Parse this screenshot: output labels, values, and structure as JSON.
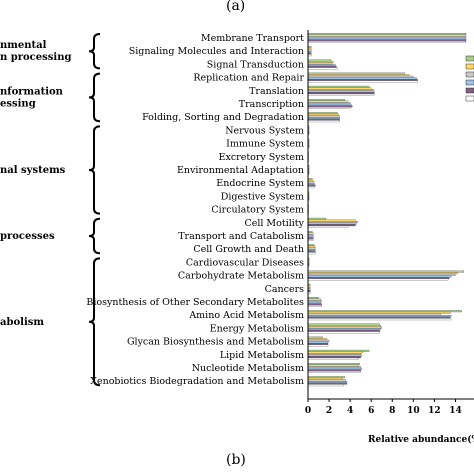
{
  "panel_top_label": "(a)",
  "panel_bottom_label": "(b)",
  "colors": {
    "series": [
      "#a8d08d",
      "#ffd966",
      "#c9c9c9",
      "#9dc3e6",
      "#7f6084",
      "#ffffff"
    ],
    "stroke": "#333333",
    "axis": "#000000"
  },
  "chart_data": {
    "type": "bar",
    "orientation": "horizontal",
    "xlabel": "Relative abundance(%)",
    "ylabel": "",
    "xlim": [
      0,
      15
    ],
    "xticks": [
      0,
      2,
      4,
      6,
      8,
      10,
      12,
      14
    ],
    "grid": false,
    "groups": [
      {
        "label": "nmental\nn processing",
        "categories": [
          "Membrane Transport",
          "Signaling Molecules and Interaction",
          "Signal Transduction"
        ]
      },
      {
        "label": "nformation\nessing",
        "categories": [
          "Replication and Repair",
          "Translation",
          "Transcription",
          "Folding, Sorting and Degradation"
        ]
      },
      {
        "label": "nal systems",
        "categories": [
          "Nervous System",
          "Immune System",
          "Excretory System",
          "Environmental Adaptation",
          "Endocrine System",
          "Digestive System",
          "Circulatory System"
        ]
      },
      {
        "label": "processes",
        "categories": [
          "Cell Motility",
          "Transport and Catabolism",
          "Cell Growth and Death"
        ]
      },
      {
        "label": "abolism",
        "categories": [
          "Cardiovascular Diseases",
          "Carbohydrate Metabolism",
          "Cancers",
          "Biosynthesis of Other Secondary Metabolites",
          "Amino Acid Metabolism",
          "Energy Metabolism",
          "Glycan Biosynthesis and Metabolism",
          "Lipid Metabolism",
          "Nucleotide Metabolism",
          "Xenobiotics Biodegradation and Metabolism"
        ]
      }
    ],
    "categories": [
      "Membrane Transport",
      "Signaling Molecules and Interaction",
      "Signal Transduction",
      "Replication and Repair",
      "Translation",
      "Transcription",
      "Folding, Sorting and Degradation",
      "Nervous System",
      "Immune System",
      "Excretory System",
      "Environmental Adaptation",
      "Endocrine System",
      "Digestive System",
      "Circulatory System",
      "Cell Motility",
      "Transport and Catabolism",
      "Cell Growth and Death",
      "Cardiovascular Diseases",
      "Carbohydrate Metabolism",
      "Cancers",
      "Biosynthesis of Other Secondary Metabolites",
      "Amino Acid Metabolism",
      "Energy Metabolism",
      "Glycan Biosynthesis and Metabolism",
      "Lipid Metabolism",
      "Nucleotide Metabolism",
      "Xenobiotics Biodegradation and Metabolism"
    ],
    "series": [
      {
        "values": [
          15.5,
          0.3,
          2.2,
          9.2,
          5.8,
          3.5,
          2.8,
          0.1,
          0.1,
          0.05,
          0.1,
          0.4,
          0.1,
          0.05,
          1.7,
          0.4,
          0.6,
          0.1,
          14.8,
          0.2,
          1.0,
          14.6,
          6.8,
          1.4,
          5.8,
          4.9,
          3.5
        ]
      },
      {
        "values": [
          15.5,
          0.3,
          2.4,
          9.6,
          6.0,
          3.8,
          2.9,
          0.1,
          0.1,
          0.05,
          0.1,
          0.5,
          0.1,
          0.05,
          4.5,
          0.5,
          0.7,
          0.1,
          14.2,
          0.2,
          1.2,
          13.5,
          6.9,
          1.8,
          5.2,
          4.8,
          3.3
        ]
      },
      {
        "values": [
          15.5,
          0.3,
          2.3,
          10.0,
          6.2,
          4.0,
          3.0,
          0.1,
          0.1,
          0.05,
          0.1,
          0.6,
          0.1,
          0.05,
          4.7,
          0.5,
          0.7,
          0.1,
          14.0,
          0.2,
          1.3,
          12.6,
          7.0,
          2.0,
          5.0,
          5.0,
          3.6
        ]
      },
      {
        "values": [
          15.5,
          0.3,
          2.6,
          10.3,
          6.3,
          4.1,
          3.0,
          0.1,
          0.1,
          0.05,
          0.1,
          0.6,
          0.1,
          0.05,
          4.6,
          0.5,
          0.7,
          0.1,
          13.6,
          0.2,
          1.2,
          13.6,
          6.9,
          1.9,
          5.1,
          5.1,
          3.7
        ]
      },
      {
        "values": [
          15.5,
          0.3,
          2.7,
          10.4,
          6.3,
          4.2,
          3.0,
          0.1,
          0.1,
          0.05,
          0.1,
          0.7,
          0.1,
          0.05,
          4.5,
          0.5,
          0.7,
          0.1,
          13.4,
          0.2,
          1.3,
          13.5,
          6.8,
          1.9,
          5.0,
          5.0,
          3.7
        ]
      },
      {
        "values": [
          15.5,
          0.3,
          2.8,
          10.4,
          6.3,
          4.0,
          3.0,
          0.1,
          0.1,
          0.05,
          0.1,
          0.6,
          0.1,
          0.05,
          3.8,
          0.5,
          0.7,
          0.1,
          13.3,
          0.2,
          1.3,
          13.6,
          6.8,
          1.9,
          4.8,
          5.0,
          3.4
        ]
      }
    ]
  }
}
